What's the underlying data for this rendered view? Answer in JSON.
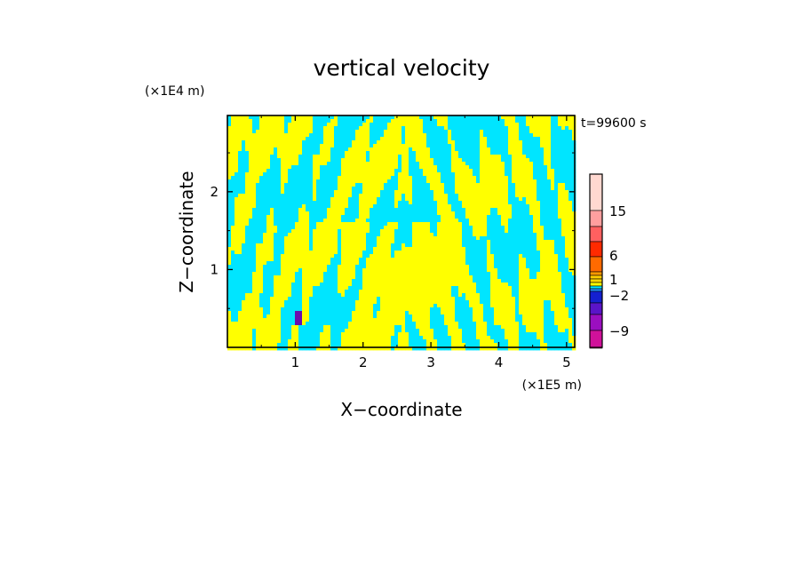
{
  "chart_data": {
    "type": "heatmap",
    "title": "vertical velocity",
    "xlabel": "X−coordinate",
    "ylabel": "Z−coordinate",
    "x_unit": "(×1E5 m)",
    "y_unit": "(×1E4 m)",
    "time_label": "t=99600 s",
    "xlim": [
      0,
      5.12
    ],
    "ylim": [
      0,
      2.98
    ],
    "x_ticks": [
      {
        "value": 1,
        "label": "1"
      },
      {
        "value": 2,
        "label": "2"
      },
      {
        "value": 3,
        "label": "3"
      },
      {
        "value": 4,
        "label": "4"
      },
      {
        "value": 5,
        "label": "5"
      }
    ],
    "y_ticks": [
      {
        "value": 1,
        "label": "1"
      },
      {
        "value": 2,
        "label": "2"
      }
    ],
    "grid": false,
    "colorbar": {
      "position": "right",
      "levels": [
        {
          "from": -12,
          "to": -9,
          "color": "#ff1493"
        },
        {
          "from": -9,
          "to": -6,
          "color": "#d0119a"
        },
        {
          "from": -6,
          "to": -4,
          "color": "#9b0fc0"
        },
        {
          "from": -4,
          "to": -2,
          "color": "#5a14c8"
        },
        {
          "from": -2,
          "to": -1,
          "color": "#1420d0"
        },
        {
          "from": -1,
          "to": -0.5,
          "color": "#1e90ff"
        },
        {
          "from": -0.5,
          "to": 0,
          "color": "#00e5ff"
        },
        {
          "from": 0,
          "to": 0.5,
          "color": "#ffff00"
        },
        {
          "from": 0.5,
          "to": 1,
          "color": "#ffd700"
        },
        {
          "from": 1,
          "to": 2,
          "color": "#ffcc00"
        },
        {
          "from": 2,
          "to": 4,
          "color": "#ff9900"
        },
        {
          "from": 4,
          "to": 6,
          "color": "#ff6a00"
        },
        {
          "from": 6,
          "to": 9,
          "color": "#ff2a00"
        },
        {
          "from": 9,
          "to": 12,
          "color": "#ff6060"
        },
        {
          "from": 12,
          "to": 15,
          "color": "#ff9f9f"
        },
        {
          "from": 15,
          "to": 25,
          "color": "#ffd8d0"
        }
      ],
      "tick_labels": [
        {
          "value": 15,
          "label": "15"
        },
        {
          "value": 6,
          "label": "6"
        },
        {
          "value": 1,
          "label": "1"
        },
        {
          "value": -2,
          "label": "−2"
        },
        {
          "value": -9,
          "label": "−9"
        }
      ]
    },
    "colors": {
      "positive": "#ffff00",
      "negative": "#00e5ff",
      "strong_negative": "#6a0dad"
    }
  }
}
